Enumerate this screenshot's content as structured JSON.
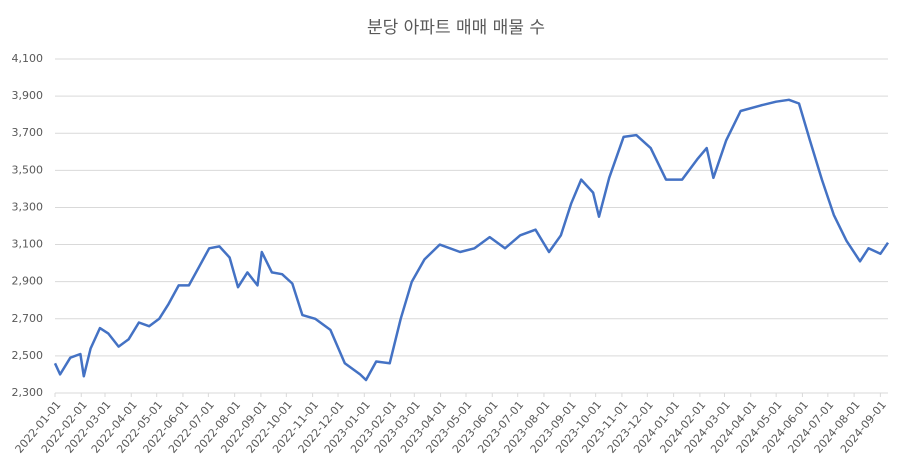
{
  "chart_data": {
    "type": "line",
    "title": "분당 아파트 매매 매물 수",
    "x": [
      "2022-01-01",
      "2022-01-07",
      "2022-01-19",
      "2022-01-31",
      "2022-02-04",
      "2022-02-12",
      "2022-02-23",
      "2022-03-05",
      "2022-03-17",
      "2022-03-29",
      "2022-04-10",
      "2022-04-22",
      "2022-05-04",
      "2022-05-15",
      "2022-05-27",
      "2022-06-08",
      "2022-06-20",
      "2022-07-02",
      "2022-07-14",
      "2022-07-26",
      "2022-08-05",
      "2022-08-16",
      "2022-08-28",
      "2022-09-02",
      "2022-09-14",
      "2022-09-26",
      "2022-10-08",
      "2022-10-20",
      "2022-11-04",
      "2022-11-22",
      "2022-12-09",
      "2022-12-27",
      "2023-01-03",
      "2023-01-15",
      "2023-01-31",
      "2023-02-13",
      "2023-02-26",
      "2023-03-13",
      "2023-03-31",
      "2023-04-24",
      "2023-05-11",
      "2023-05-29",
      "2023-06-16",
      "2023-07-04",
      "2023-07-22",
      "2023-08-07",
      "2023-08-21",
      "2023-09-02",
      "2023-09-14",
      "2023-09-28",
      "2023-10-05",
      "2023-10-17",
      "2023-11-03",
      "2023-11-18",
      "2023-12-05",
      "2023-12-23",
      "2024-01-11",
      "2024-01-29",
      "2024-02-09",
      "2024-02-17",
      "2024-03-03",
      "2024-03-20",
      "2024-04-13",
      "2024-05-01",
      "2024-05-16",
      "2024-05-28",
      "2024-06-10",
      "2024-06-24",
      "2024-07-08",
      "2024-07-23",
      "2024-08-08",
      "2024-08-18",
      "2024-09-01",
      "2024-09-10"
    ],
    "series": [
      {
        "name": "매물 수",
        "color": "#4472c4",
        "values": [
          2460,
          2400,
          2490,
          2510,
          2390,
          2540,
          2650,
          2620,
          2550,
          2590,
          2680,
          2660,
          2700,
          2780,
          2880,
          2880,
          2980,
          3080,
          3090,
          3030,
          2870,
          2950,
          2880,
          3060,
          2950,
          2940,
          2890,
          2720,
          2700,
          2640,
          2460,
          2400,
          2370,
          2470,
          2460,
          2700,
          2900,
          3020,
          3100,
          3060,
          3080,
          3140,
          3080,
          3150,
          3180,
          3060,
          3150,
          3320,
          3450,
          3380,
          3250,
          3460,
          3680,
          3690,
          3620,
          3450,
          3450,
          3560,
          3620,
          3460,
          3660,
          3820,
          3850,
          3870,
          3880,
          3860,
          3660,
          3450,
          3260,
          3120,
          3010,
          3080,
          3050,
          3110
        ]
      }
    ],
    "xlim": [
      "2022-01-01",
      "2024-09-10"
    ],
    "xticks": [
      "2022-01-01",
      "2022-02-01",
      "2022-03-01",
      "2022-04-01",
      "2022-05-01",
      "2022-06-01",
      "2022-07-01",
      "2022-08-01",
      "2022-09-01",
      "2022-10-01",
      "2022-11-01",
      "2022-12-01",
      "2023-01-01",
      "2023-02-01",
      "2023-03-01",
      "2023-04-01",
      "2023-05-01",
      "2023-06-01",
      "2023-07-01",
      "2023-08-01",
      "2023-09-01",
      "2023-10-01",
      "2023-11-01",
      "2023-12-01",
      "2024-01-01",
      "2024-02-01",
      "2024-03-01",
      "2024-04-01",
      "2024-05-01",
      "2024-06-01",
      "2024-07-01",
      "2024-08-01",
      "2024-09-01"
    ],
    "ylim": [
      2300,
      4100
    ],
    "yticks": [
      {
        "value": 2300,
        "label": "2,300"
      },
      {
        "value": 2500,
        "label": "2,500"
      },
      {
        "value": 2700,
        "label": "2,700"
      },
      {
        "value": 2900,
        "label": "2,900"
      },
      {
        "value": 3100,
        "label": "3,100"
      },
      {
        "value": 3300,
        "label": "3,300"
      },
      {
        "value": 3500,
        "label": "3,500"
      },
      {
        "value": 3700,
        "label": "3,700"
      },
      {
        "value": 3900,
        "label": "3,900"
      },
      {
        "value": 4100,
        "label": "4,100"
      }
    ],
    "grid": true
  }
}
